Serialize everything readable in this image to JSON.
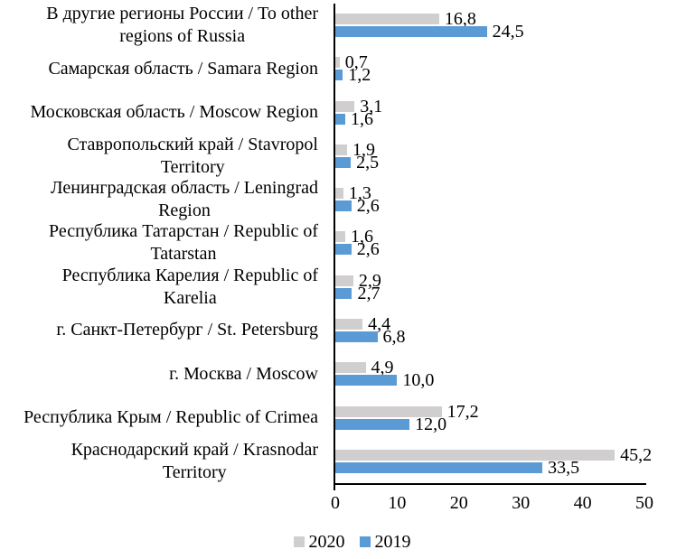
{
  "chart_data": {
    "type": "bar",
    "orientation": "horizontal",
    "title": "",
    "xlabel": "",
    "ylabel": "",
    "xlim": [
      0,
      50
    ],
    "x_ticks": [
      "0",
      "10",
      "20",
      "30",
      "40",
      "50"
    ],
    "grid": false,
    "legend_position": "bottom",
    "axis_color": "#000000",
    "text_color": "#000000",
    "categories": [
      "В другие регионы России / To other\nregions of Russia",
      "Самарская область / Samara Region",
      "Московская область / Moscow Region",
      "Ставропольский край / Stavropol\nTerritory",
      "Ленинградская область / Leningrad\nRegion",
      "Республика Татарстан / Republic of\nTatarstan",
      "Республика Карелия / Republic of\nKarelia",
      "г. Санкт-Петербург / St. Petersburg",
      "г. Москва / Moscow",
      "Республика Крым / Republic of Crimea",
      "Краснодарский край / Krasnodar\nTerritory"
    ],
    "series": [
      {
        "name": "2020",
        "color": "#d0cece",
        "values": [
          16.8,
          0.7,
          3.1,
          1.9,
          1.3,
          1.6,
          2.9,
          4.4,
          4.9,
          17.2,
          45.2
        ],
        "value_labels": [
          "16,8",
          "0,7",
          "3,1",
          "1,9",
          "1,3",
          "1,6",
          "2,9",
          "4,4",
          "4,9",
          "17,2",
          "45,2"
        ]
      },
      {
        "name": "2019",
        "color": "#5b9bd5",
        "values": [
          24.5,
          1.2,
          1.6,
          2.5,
          2.6,
          2.6,
          2.7,
          6.8,
          10.0,
          12.0,
          33.5
        ],
        "value_labels": [
          "24,5",
          "1,2",
          "1,6",
          "2,5",
          "2,6",
          "2,6",
          "2,7",
          "6,8",
          "10,0",
          "12,0",
          "33,5"
        ]
      }
    ]
  }
}
